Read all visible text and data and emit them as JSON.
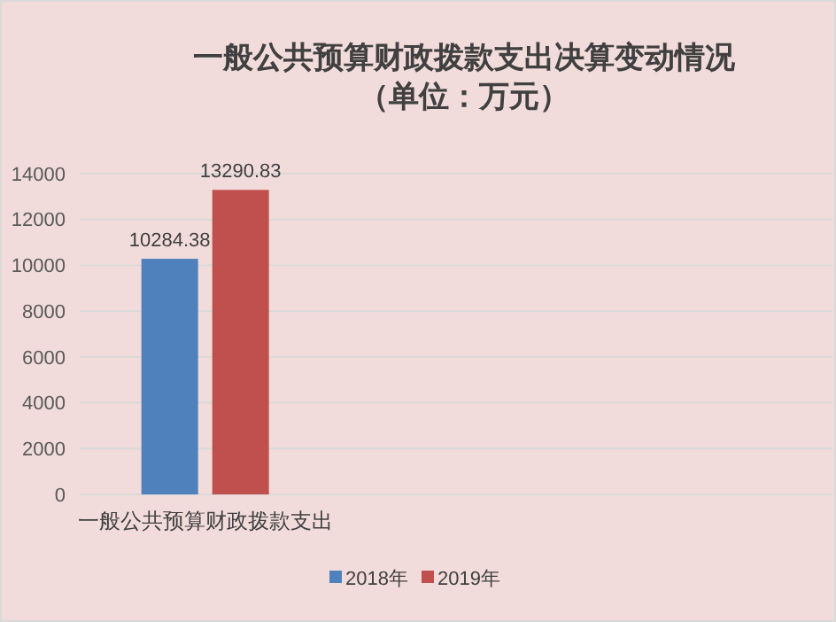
{
  "chart_data": {
    "type": "bar",
    "title": "一般公共预算财政拨款支出决算变动情况",
    "subtitle": "（单位：万元）",
    "categories": [
      "一般公共预算财政拨款支出",
      null,
      null
    ],
    "series": [
      {
        "name": "2018年",
        "color": "#4f81bd",
        "values": [
          10284.38,
          null,
          null
        ]
      },
      {
        "name": "2019年",
        "color": "#c0504d",
        "values": [
          13290.83,
          null,
          null
        ]
      }
    ],
    "ylim": [
      0,
      14000
    ],
    "yticks": [
      0,
      2000,
      4000,
      6000,
      8000,
      10000,
      12000,
      14000
    ],
    "grid": "y",
    "legend": "bottom",
    "data_labels": true
  }
}
